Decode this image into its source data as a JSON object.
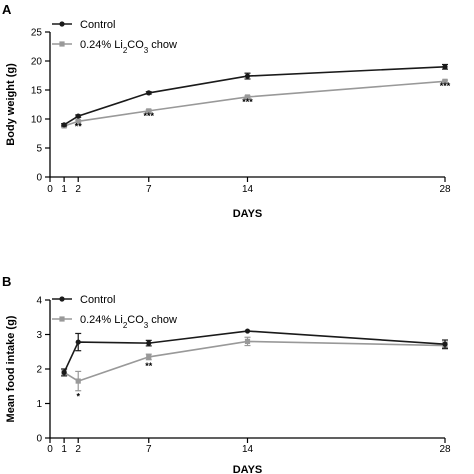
{
  "chart_data": [
    {
      "panel": "A",
      "type": "line",
      "xlabel": "DAYS",
      "ylabel": "Body weight (g)",
      "xlim": [
        0,
        28
      ],
      "ylim": [
        0,
        25
      ],
      "xticks": [
        0,
        1,
        2,
        7,
        14,
        28
      ],
      "yticks": [
        0,
        5,
        10,
        15,
        20,
        25
      ],
      "grid": false,
      "legend_position": "top-left",
      "x": [
        1,
        2,
        7,
        14,
        28
      ],
      "series": [
        {
          "name": "Control",
          "legend_main": "Control",
          "legend_sub": "",
          "legend_tail": "",
          "color": "#1a1a1a",
          "marker": "circle",
          "values": [
            9.0,
            10.5,
            14.5,
            17.4,
            19.0
          ],
          "errors": [
            0.2,
            0.2,
            0.2,
            0.5,
            0.4
          ]
        },
        {
          "name": "0.24% Li2CO3 chow",
          "legend_main": "0.24% Li",
          "legend_sub": "2",
          "legend_mid": "CO",
          "legend_sub2": "3",
          "legend_tail": " chow",
          "color": "#999999",
          "marker": "square",
          "values": [
            8.8,
            9.6,
            11.4,
            13.8,
            16.5
          ],
          "errors": [
            0.2,
            0.2,
            0.2,
            0.2,
            0.2
          ]
        }
      ],
      "annotations": [
        {
          "x": 2,
          "text": "**",
          "y": 8.2
        },
        {
          "x": 7,
          "text": "***",
          "y": 10.0
        },
        {
          "x": 14,
          "text": "***",
          "y": 12.4
        },
        {
          "x": 28,
          "text": "***",
          "y": 15.2
        }
      ]
    },
    {
      "panel": "B",
      "type": "line",
      "xlabel": "DAYS",
      "ylabel": "Mean food intake (g)",
      "xlim": [
        0,
        28
      ],
      "ylim": [
        0,
        4
      ],
      "xticks": [
        0,
        1,
        2,
        7,
        14,
        28
      ],
      "yticks": [
        0,
        1,
        2,
        3,
        4
      ],
      "grid": false,
      "legend_position": "top-left",
      "x": [
        1,
        2,
        7,
        14,
        28
      ],
      "series": [
        {
          "name": "Control",
          "legend_main": "Control",
          "legend_sub": "",
          "legend_tail": "",
          "color": "#1a1a1a",
          "marker": "circle",
          "values": [
            1.9,
            2.78,
            2.75,
            3.1,
            2.72
          ],
          "errors": [
            0.1,
            0.25,
            0.08,
            0.0,
            0.12
          ]
        },
        {
          "name": "0.24% Li2CO3 chow",
          "legend_main": "0.24% Li",
          "legend_sub": "2",
          "legend_mid": "CO",
          "legend_sub2": "3",
          "legend_tail": " chow",
          "color": "#999999",
          "marker": "square",
          "values": [
            1.9,
            1.65,
            2.35,
            2.8,
            2.68
          ],
          "errors": [
            0.1,
            0.28,
            0.08,
            0.12,
            0.1
          ]
        }
      ],
      "annotations": [
        {
          "x": 2,
          "text": "*",
          "y": 1.12
        },
        {
          "x": 7,
          "text": "**",
          "y": 2.0
        }
      ]
    }
  ]
}
